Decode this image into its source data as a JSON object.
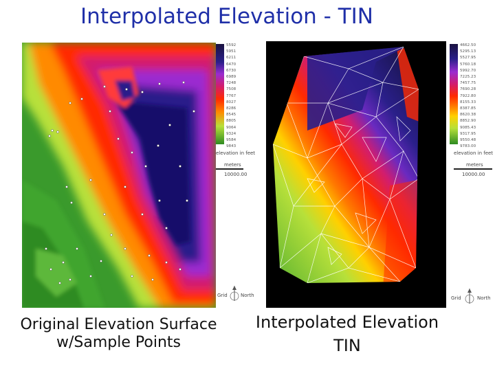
{
  "title": "Interpolated Elevation - TIN",
  "left_panel": {
    "legend_values": [
      "5592",
      "5951",
      "6211",
      "6470",
      "6730",
      "6989",
      "7248",
      "7508",
      "7767",
      "8027",
      "8286",
      "8545",
      "8805",
      "9064",
      "9324",
      "9584",
      "9843"
    ],
    "legend_label": "elevation in feet",
    "scale_unit": "meters",
    "scale_value": "10000.00",
    "grid_label": "Grid",
    "north_label": "North",
    "caption_line1": "Original Elevation Surface",
    "caption_line2": "w/Sample Points"
  },
  "right_panel": {
    "legend_values": [
      "4662.50",
      "5295.13",
      "5527.95",
      "5760.18",
      "5992.70",
      "7225.23",
      "7457.75",
      "7690.28",
      "7922.80",
      "8155.33",
      "8387.85",
      "8620.38",
      "8852.90",
      "9085.43",
      "9317.95",
      "9550.48",
      "9783.00"
    ],
    "legend_label": "elevation in feet",
    "scale_unit": "meters",
    "scale_value": "10000.00",
    "grid_label": "Grid",
    "north_label": "North",
    "caption_line1": "Interpolated Elevation",
    "caption_line2": "TIN"
  },
  "colors": {
    "title": "#1f2fa8",
    "low": "#2e8b22",
    "mid": "#ff2a00",
    "high": "#1a1240"
  }
}
